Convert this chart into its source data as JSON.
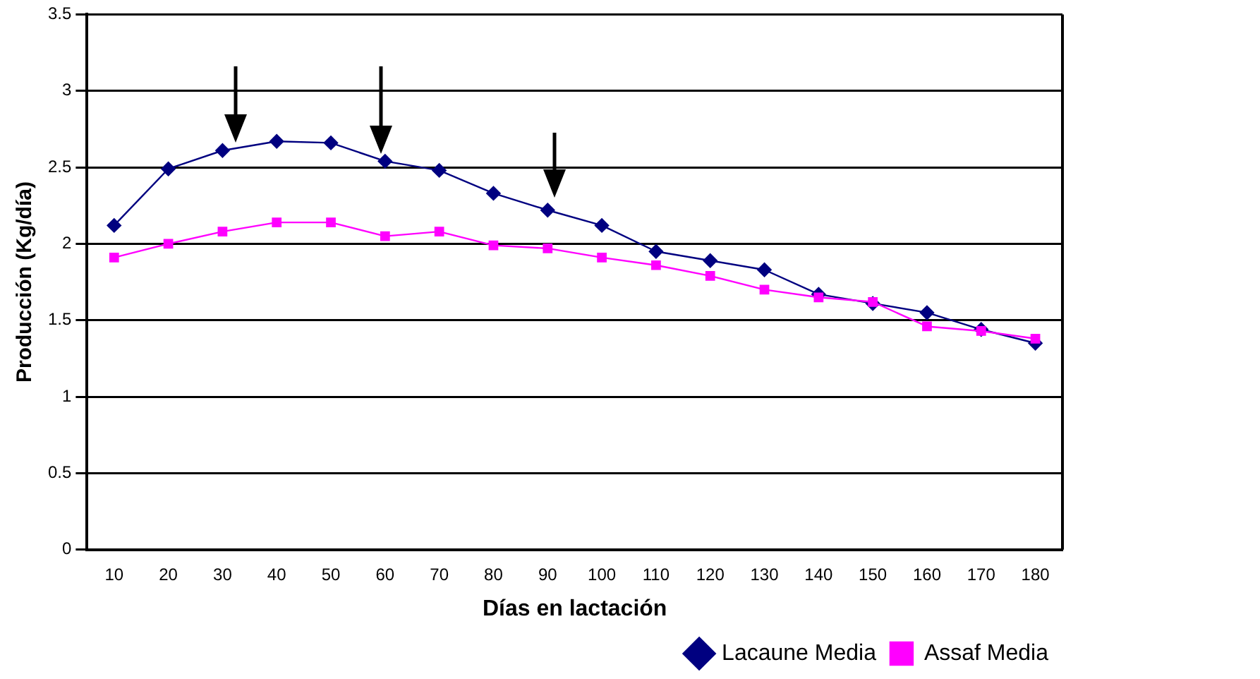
{
  "chart_data": {
    "type": "line",
    "xlabel": "Días en lactación",
    "ylabel": "Producción (Kg/día)",
    "categories": [
      "10",
      "20",
      "30",
      "40",
      "50",
      "60",
      "70",
      "80",
      "90",
      "100",
      "110",
      "120",
      "130",
      "140",
      "150",
      "160",
      "170",
      "180"
    ],
    "series": [
      {
        "name": "Lacaune Media",
        "color": "#000080",
        "marker": "diamond",
        "values": [
          2.12,
          2.49,
          2.61,
          2.67,
          2.66,
          2.54,
          2.48,
          2.33,
          2.22,
          2.12,
          1.95,
          1.89,
          1.83,
          1.67,
          1.61,
          1.55,
          1.44,
          1.35
        ]
      },
      {
        "name": "Assaf Media",
        "color": "#ff00ff",
        "marker": "square",
        "values": [
          1.91,
          2.0,
          2.08,
          2.14,
          2.14,
          2.05,
          2.08,
          1.99,
          1.97,
          1.91,
          1.86,
          1.79,
          1.7,
          1.65,
          1.62,
          1.46,
          1.43,
          1.38
        ]
      }
    ],
    "ylim": [
      0,
      3.5
    ],
    "yticks": [
      0,
      0.5,
      1,
      1.5,
      2,
      2.5,
      3,
      3.5
    ],
    "grid": "y",
    "legend": "bottom right",
    "line_style": "solid"
  }
}
